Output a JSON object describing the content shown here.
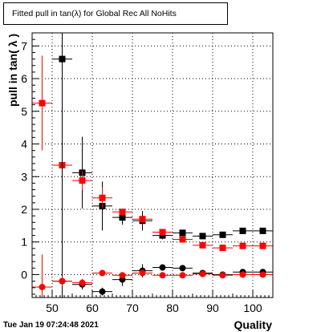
{
  "title": "Fitted pull in tan(λ) for Global Rec All NoHits",
  "date": "Tue Jan 19 07:24:48 2021",
  "chart_data": {
    "type": "scatter",
    "xlabel": "Quality",
    "ylabel": "pull in tan( λ )",
    "xlim": [
      45,
      105
    ],
    "ylim": [
      -0.7,
      7.4
    ],
    "xticks": [
      50,
      60,
      70,
      80,
      90,
      100
    ],
    "yticks": [
      0,
      1,
      2,
      3,
      4,
      5,
      6,
      7
    ],
    "grid": true,
    "series": [
      {
        "marker": "square",
        "color": "#000000",
        "x": [
          52.5,
          57.5,
          62.5,
          67.5,
          72.5,
          77.5,
          82.5,
          87.5,
          92.5,
          97.5,
          102.5
        ],
        "y": [
          6.6,
          3.12,
          2.1,
          1.75,
          1.65,
          1.2,
          1.28,
          1.18,
          1.22,
          1.34,
          1.34
        ],
        "yerr": [
          2.5,
          1.1,
          0.75,
          0.22,
          0.3,
          0.12,
          0.08,
          0.07,
          0.05,
          0.05,
          0.05
        ]
      },
      {
        "marker": "square",
        "color": "#ff0000",
        "x": [
          47.5,
          52.5,
          57.5,
          62.5,
          67.5,
          72.5,
          77.5,
          82.5,
          87.5,
          92.5,
          97.5,
          102.5
        ],
        "y": [
          5.25,
          3.35,
          2.88,
          2.35,
          1.92,
          1.7,
          1.3,
          1.08,
          0.9,
          0.82,
          0.88,
          0.88
        ],
        "yerr": [
          1.45,
          0.45,
          0.3,
          0.32,
          0.1,
          0.08,
          0.06,
          0.05,
          0.04,
          0.04,
          0.04,
          0.04
        ]
      },
      {
        "marker": "circle",
        "color": "#000000",
        "x": [
          52.5,
          57.5,
          62.5,
          67.5,
          72.5,
          77.5,
          82.5,
          87.5,
          92.5,
          97.5,
          102.5
        ],
        "y": [
          -0.2,
          -0.3,
          -0.52,
          -0.15,
          0.12,
          0.22,
          0.2,
          0.05,
          0.0,
          0.08,
          0.08
        ],
        "yerr": [
          7.5,
          0.15,
          0.12,
          0.2,
          0.2,
          0.06,
          0.06,
          0.05,
          0.04,
          0.04,
          0.04
        ]
      },
      {
        "marker": "circle",
        "color": "#ff0000",
        "x": [
          47.5,
          52.5,
          57.5,
          62.5,
          67.5,
          72.5,
          77.5,
          82.5,
          87.5,
          92.5,
          97.5,
          102.5
        ],
        "y": [
          -0.38,
          -0.2,
          -0.25,
          0.05,
          -0.02,
          0.05,
          -0.02,
          -0.02,
          0.02,
          -0.02,
          0.0,
          0.0
        ],
        "yerr": [
          1.0,
          0.15,
          0.12,
          0.1,
          0.08,
          0.06,
          0.05,
          0.05,
          0.04,
          0.04,
          0.04,
          0.04
        ]
      }
    ]
  }
}
